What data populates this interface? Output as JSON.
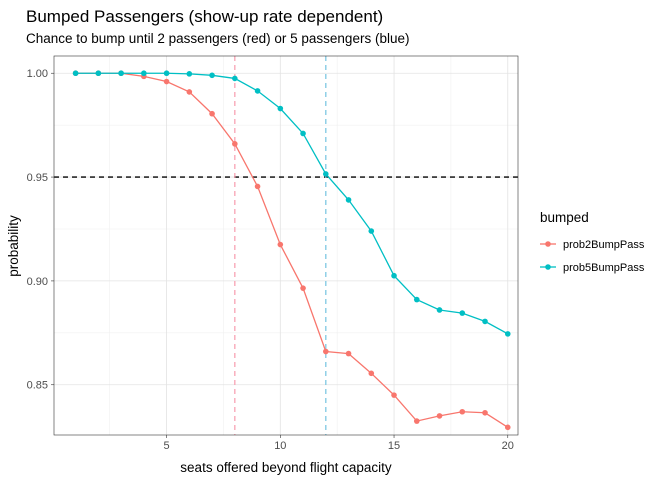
{
  "chart_data": {
    "type": "line",
    "title": "Bumped Passengers (show-up rate dependent)",
    "subtitle": "Chance to bump until 2 passengers (red) or 5 passengers (blue)",
    "xlabel": "seats offered beyond flight capacity",
    "ylabel": "probability",
    "xlim": [
      0.05,
      20.45
    ],
    "ylim": [
      0.8258,
      1.0083
    ],
    "x_ticks": [
      5,
      10,
      15,
      20
    ],
    "x_tick_labels": [
      "5",
      "10",
      "15",
      "20"
    ],
    "y_ticks": [
      0.85,
      0.9,
      0.95,
      1.0
    ],
    "y_tick_labels": [
      "0.85",
      "0.90",
      "0.95",
      "1.00"
    ],
    "grid": true,
    "legend": {
      "title": "bumped",
      "position": "right"
    },
    "x": [
      1,
      2,
      3,
      4,
      5,
      6,
      7,
      8,
      9,
      10,
      11,
      12,
      13,
      14,
      15,
      16,
      17,
      18,
      19,
      20
    ],
    "series": [
      {
        "name": "prob2BumpPass",
        "color": "#F8766D",
        "values": [
          1.0,
          1.0,
          1.0,
          0.9985,
          0.996,
          0.991,
          0.9805,
          0.966,
          0.9455,
          0.9175,
          0.8965,
          0.866,
          0.865,
          0.8555,
          0.845,
          0.8325,
          0.835,
          0.837,
          0.8365,
          0.8295
        ]
      },
      {
        "name": "prob5BumpPass",
        "color": "#00BFC4",
        "values": [
          1.0,
          1.0,
          1.0,
          1.0,
          1.0,
          0.9997,
          0.999,
          0.9975,
          0.9915,
          0.983,
          0.971,
          0.9515,
          0.939,
          0.924,
          0.9025,
          0.891,
          0.886,
          0.8845,
          0.8805,
          0.8745
        ]
      }
    ],
    "reference_lines": [
      {
        "orientation": "horizontal",
        "value": 0.95,
        "color": "#000000",
        "dash": "dashed"
      },
      {
        "orientation": "vertical",
        "value": 8,
        "color": "#F8A3B4",
        "dash": "dashed"
      },
      {
        "orientation": "vertical",
        "value": 12,
        "color": "#7EC8E3",
        "dash": "dashed"
      }
    ]
  }
}
